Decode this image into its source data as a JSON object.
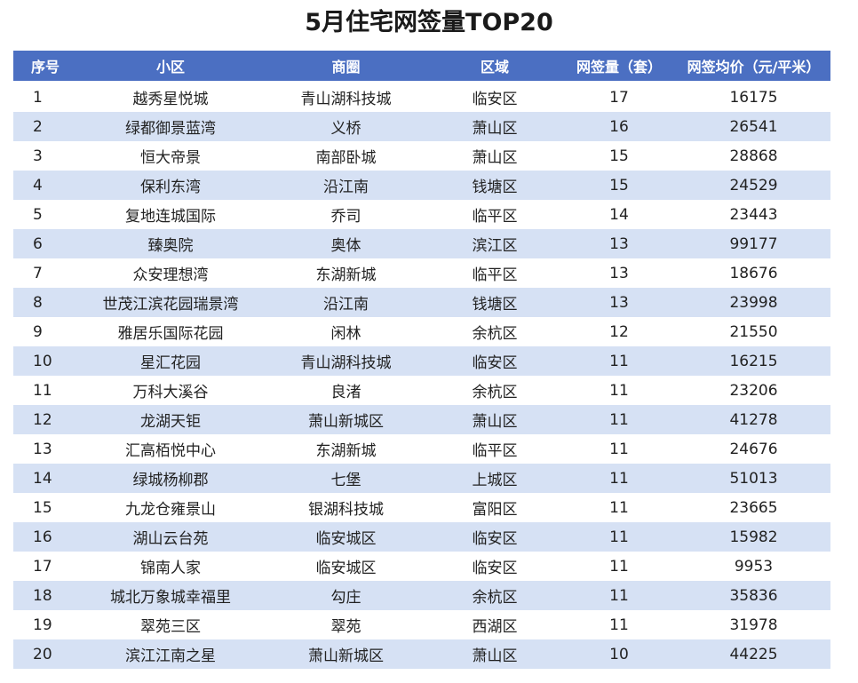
{
  "title": "5月住宅网签量TOP20",
  "headers": [
    "序号",
    "小区",
    "商圈",
    "区域",
    "网签量（套）",
    "网签均价（元/平米）"
  ],
  "rows": [
    [
      "1",
      "越秀星悦城",
      "青山湖科技城",
      "临安区",
      "17",
      "16175"
    ],
    [
      "2",
      "绿都御景蓝湾",
      "义桥",
      "萧山区",
      "16",
      "26541"
    ],
    [
      "3",
      "恒大帝景",
      "南部卧城",
      "萧山区",
      "15",
      "28868"
    ],
    [
      "4",
      "保利东湾",
      "沿江南",
      "钱塘区",
      "15",
      "24529"
    ],
    [
      "5",
      "复地连城国际",
      "乔司",
      "临平区",
      "14",
      "23443"
    ],
    [
      "6",
      "臻奥院",
      "奥体",
      "滨江区",
      "13",
      "99177"
    ],
    [
      "7",
      "众安理想湾",
      "东湖新城",
      "临平区",
      "13",
      "18676"
    ],
    [
      "8",
      "世茂江滨花园瑞景湾",
      "沿江南",
      "钱塘区",
      "13",
      "23998"
    ],
    [
      "9",
      "雅居乐国际花园",
      "闲林",
      "余杭区",
      "12",
      "21550"
    ],
    [
      "10",
      "星汇花园",
      "青山湖科技城",
      "临安区",
      "11",
      "16215"
    ],
    [
      "11",
      "万科大溪谷",
      "良渚",
      "余杭区",
      "11",
      "23206"
    ],
    [
      "12",
      "龙湖天钜",
      "萧山新城区",
      "萧山区",
      "11",
      "41278"
    ],
    [
      "13",
      "汇高栢悦中心",
      "东湖新城",
      "临平区",
      "11",
      "24676"
    ],
    [
      "14",
      "绿城杨柳郡",
      "七堡",
      "上城区",
      "11",
      "51013"
    ],
    [
      "15",
      "九龙仓雍景山",
      "银湖科技城",
      "富阳区",
      "11",
      "23665"
    ],
    [
      "16",
      "湖山云台苑",
      "临安城区",
      "临安区",
      "11",
      "15982"
    ],
    [
      "17",
      "锦南人家",
      "临安城区",
      "临安区",
      "11",
      "9953"
    ],
    [
      "18",
      "城北万象城幸福里",
      "勾庄",
      "余杭区",
      "11",
      "35836"
    ],
    [
      "19",
      "翠苑三区",
      "翠苑",
      "西湖区",
      "11",
      "31978"
    ],
    [
      "20",
      "滨江江南之星",
      "萧山新城区",
      "萧山区",
      "10",
      "44225"
    ]
  ],
  "colors": {
    "header_bg": "#4b6fc2",
    "header_text": "#ffffff",
    "stripe_bg": "#d6e1f4"
  }
}
